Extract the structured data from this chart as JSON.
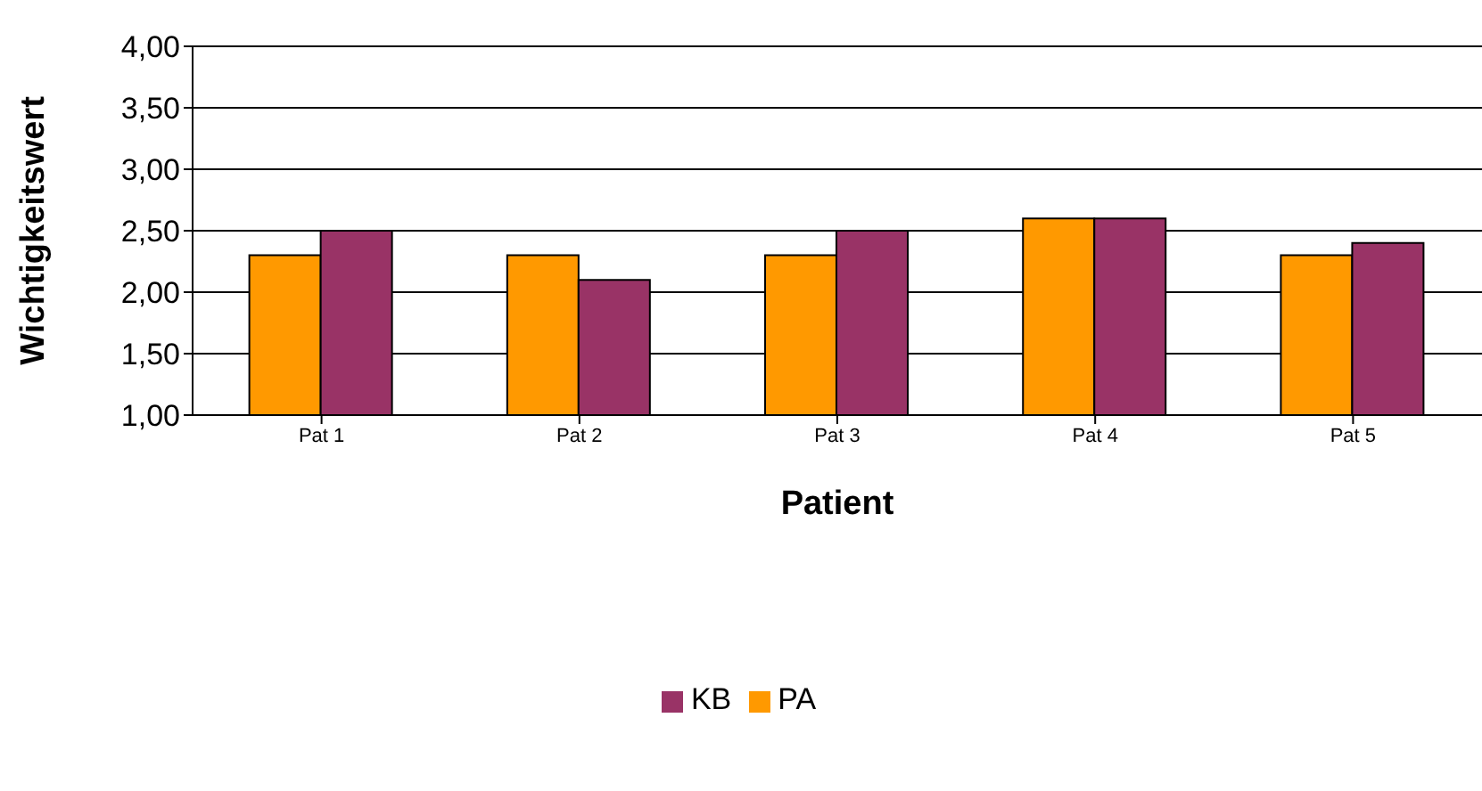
{
  "chart_data": {
    "type": "bar",
    "xlabel": "Patient",
    "ylabel": "Wichtigkeitswert",
    "categories": [
      "Pat 1",
      "Pat 2",
      "Pat 3",
      "Pat 4",
      "Pat 5"
    ],
    "series": [
      {
        "name": "PA",
        "color": "#ff9900",
        "values": [
          2.3,
          2.3,
          2.3,
          2.6,
          2.3
        ]
      },
      {
        "name": "KB",
        "color": "#993366",
        "values": [
          2.5,
          2.1,
          2.5,
          2.6,
          2.4
        ]
      }
    ],
    "ylim": [
      1,
      4
    ],
    "yticks": [
      {
        "value": 1,
        "label": "1,00"
      },
      {
        "value": 1.5,
        "label": "1,50"
      },
      {
        "value": 2,
        "label": "2,00"
      },
      {
        "value": 2.5,
        "label": "2,50"
      },
      {
        "value": 3,
        "label": "3,00"
      },
      {
        "value": 3.5,
        "label": "3,50"
      },
      {
        "value": 4,
        "label": "4,00"
      }
    ],
    "grid": "y",
    "legend": "bottom"
  }
}
